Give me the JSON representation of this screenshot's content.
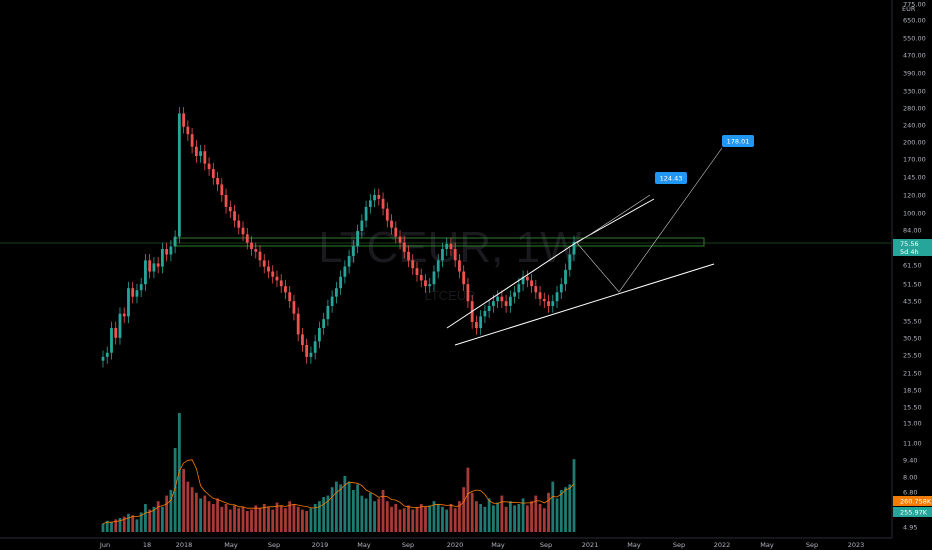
{
  "watermark": {
    "symbol": "LTCEUR, 1W",
    "sub": "LTCEUR"
  },
  "chart_data": {
    "type": "candlestick",
    "interval": "1W",
    "x_ticks": [
      "Jun",
      "18",
      "2018",
      "May",
      "Sep",
      "2019",
      "May",
      "Sep",
      "2020",
      "May",
      "Sep",
      "2021",
      "May",
      "Sep",
      "2022",
      "May",
      "Sep",
      "2023"
    ],
    "y_axis": {
      "scale": "log",
      "unit": "EUR",
      "ticks": [
        "775.00",
        "650.00",
        "550.00",
        "470.00",
        "390.00",
        "330.00",
        "280.00",
        "240.00",
        "200.00",
        "170.00",
        "145.00",
        "120.00",
        "100.00",
        "84.00",
        "71.50",
        "61.50",
        "51.50",
        "43.50",
        "35.50",
        "30.50",
        "25.50",
        "21.50",
        "18.50",
        "15.50",
        "13.00",
        "11.00",
        "9.40",
        "8.00",
        "6.80",
        "5.80",
        "4.95"
      ]
    },
    "last_price": {
      "value": "75.56",
      "countdown": "5d 4h"
    },
    "volume_labels": {
      "volume": "255.97K",
      "volume_ma": "260.758K"
    },
    "targets": [
      "124.43",
      "178.01"
    ],
    "price_path": [
      22,
      23,
      30,
      27,
      35,
      34,
      46,
      42,
      45,
      48,
      62,
      55,
      60,
      58,
      70,
      66,
      72,
      80,
      300,
      260,
      240,
      210,
      190,
      200,
      175,
      165,
      150,
      140,
      125,
      110,
      105,
      95,
      88,
      82,
      75,
      70,
      68,
      62,
      58,
      55,
      52,
      50,
      47,
      44,
      40,
      35,
      28,
      25,
      22,
      23,
      26,
      30,
      33,
      38,
      42,
      46,
      52,
      58,
      65,
      72,
      85,
      95,
      110,
      118,
      125,
      120,
      108,
      95,
      88,
      80,
      75,
      68,
      62,
      57,
      53,
      50,
      47,
      48,
      55,
      62,
      70,
      74,
      70,
      62,
      55,
      48,
      40,
      32,
      30,
      34,
      36,
      38,
      40,
      42,
      40,
      38,
      42,
      44,
      48,
      52,
      50,
      47,
      44,
      41,
      40,
      38,
      40,
      44,
      48,
      56,
      66,
      75.56
    ],
    "volume": [
      0.6,
      0.8,
      0.7,
      0.9,
      1.0,
      1.1,
      1.3,
      1.2,
      0.9,
      1.4,
      2.0,
      1.6,
      1.8,
      2.2,
      1.8,
      2.6,
      3.0,
      6.0,
      8.5,
      4.5,
      3.6,
      3.2,
      2.8,
      2.4,
      2.6,
      2.2,
      2.0,
      2.4,
      1.8,
      2.0,
      1.6,
      1.9,
      1.7,
      1.8,
      1.5,
      1.6,
      1.9,
      1.7,
      2.0,
      1.8,
      1.6,
      2.1,
      1.9,
      1.7,
      2.2,
      2.0,
      1.8,
      1.6,
      1.5,
      1.7,
      2.0,
      2.2,
      2.5,
      2.6,
      3.2,
      3.6,
      3.4,
      4.0,
      3.6,
      3.0,
      3.4,
      2.6,
      2.4,
      2.8,
      2.2,
      2.4,
      3.0,
      2.2,
      1.8,
      2.0,
      1.6,
      1.7,
      1.9,
      1.6,
      1.8,
      2.0,
      1.8,
      1.9,
      2.2,
      2.0,
      1.8,
      1.6,
      2.0,
      1.7,
      2.2,
      3.2,
      4.6,
      2.8,
      2.2,
      2.0,
      1.8,
      2.4,
      1.9,
      2.1,
      2.6,
      1.8,
      2.2,
      1.9,
      2.0,
      2.4,
      1.9,
      2.2,
      2.6,
      2.0,
      1.7,
      2.8,
      3.6,
      2.4,
      3.0,
      3.2,
      3.4,
      5.2
    ]
  }
}
